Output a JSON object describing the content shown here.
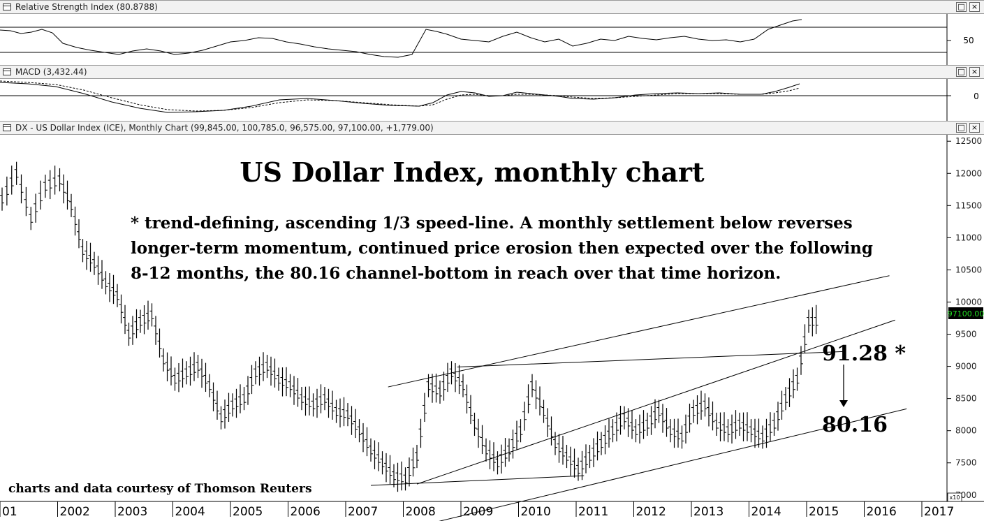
{
  "panels": {
    "rsi": {
      "title": "Relative Strength Index (80.8788)",
      "ytick": "50"
    },
    "macd": {
      "title": "MACD (3,432.44)",
      "ytick": "0"
    },
    "price": {
      "title": "DX - US Dollar Index (ICE), Monthly Chart (99,845.00, 100,785.0, 96,575.00, 97,100.00, +1,779.00)"
    }
  },
  "window_buttons": {
    "restore": "□",
    "close": "×"
  },
  "annotations": {
    "title": "US Dollar Index, monthly chart",
    "note_line1": "* trend-defining, ascending 1/3 speed-line. A monthly settlement below reverses",
    "note_line2": "longer-term momentum, continued price erosion then expected over the following",
    "note_line3": "8-12 months, the 80.16 channel-bottom in reach over that time horizon.",
    "level_upper": "91.28 *",
    "level_lower": "80.16",
    "credit": "charts and data courtesy of Thomson Reuters",
    "last_price": "97100.00",
    "scale_note": "x10"
  },
  "colors": {
    "last_price_bg": "#000000",
    "last_price_fg": "#22dd22",
    "line": "#000000"
  },
  "chart_data": {
    "type": "line",
    "title": "US Dollar Index, monthly chart",
    "x_labels": [
      "01",
      "2002",
      "2003",
      "2004",
      "2005",
      "2006",
      "2007",
      "2008",
      "2009",
      "2010",
      "2011",
      "2012",
      "2013",
      "2014",
      "2015",
      "2016",
      "2017"
    ],
    "y_ticks": [
      "12500",
      "12000",
      "11500",
      "11000",
      "10500",
      "10000",
      "9500",
      "9000",
      "8500",
      "8000",
      "7500",
      "7000"
    ],
    "ylim": [
      6900,
      12600
    ],
    "series": [
      {
        "x": [
          2001.0,
          2001.25,
          2001.5,
          2001.75,
          2002.0,
          2002.2,
          2002.4,
          2002.6,
          2002.8,
          2003.0,
          2003.2,
          2003.4,
          2003.6,
          2003.8,
          2004.0,
          2004.2,
          2004.4,
          2004.6,
          2004.8,
          2005.0,
          2005.2,
          2005.4,
          2005.6,
          2005.8,
          2006.0,
          2006.2,
          2006.4,
          2006.6,
          2006.8,
          2007.0,
          2007.2,
          2007.4,
          2007.6,
          2007.8,
          2008.0,
          2008.2,
          2008.4,
          2008.6,
          2008.8,
          2009.0,
          2009.2,
          2009.4,
          2009.6,
          2009.8,
          2010.0,
          2010.2,
          2010.4,
          2010.6,
          2010.8,
          2011.0,
          2011.2,
          2011.4,
          2011.6,
          2011.8,
          2012.0,
          2012.2,
          2012.4,
          2012.6,
          2012.8,
          2013.0,
          2013.2,
          2013.4,
          2013.6,
          2013.8,
          2014.0,
          2014.2,
          2014.4,
          2014.6,
          2014.8,
          2015.0
        ],
        "y": [
          11600,
          12000,
          11300,
          11800,
          11900,
          11500,
          10800,
          10600,
          10300,
          10100,
          9500,
          9700,
          9800,
          9100,
          8800,
          8900,
          9000,
          8700,
          8200,
          8400,
          8500,
          8900,
          9000,
          8800,
          8700,
          8500,
          8400,
          8500,
          8300,
          8250,
          8000,
          7700,
          7500,
          7300,
          7250,
          7600,
          8700,
          8600,
          8900,
          8700,
          8100,
          7700,
          7500,
          7700,
          8000,
          8700,
          8300,
          7800,
          7600,
          7400,
          7600,
          7800,
          8000,
          8200,
          8000,
          8100,
          8300,
          8000,
          7900,
          8300,
          8400,
          8100,
          8000,
          8100,
          8000,
          7900,
          8100,
          8500,
          8800,
          9700
        ]
      }
    ],
    "channel_lines": [
      {
        "name": "channel-top",
        "from": [
          2007.7,
          8680
        ],
        "to": [
          2016.4,
          10410
        ]
      },
      {
        "name": "speed-line",
        "from": [
          2008.2,
          7170
        ],
        "to": [
          2016.5,
          9720
        ]
      },
      {
        "name": "channel-bottom",
        "from": [
          2007.0,
          6250
        ],
        "to": [
          2016.7,
          8340
        ]
      }
    ],
    "levels": [
      91.28,
      80.16
    ]
  }
}
